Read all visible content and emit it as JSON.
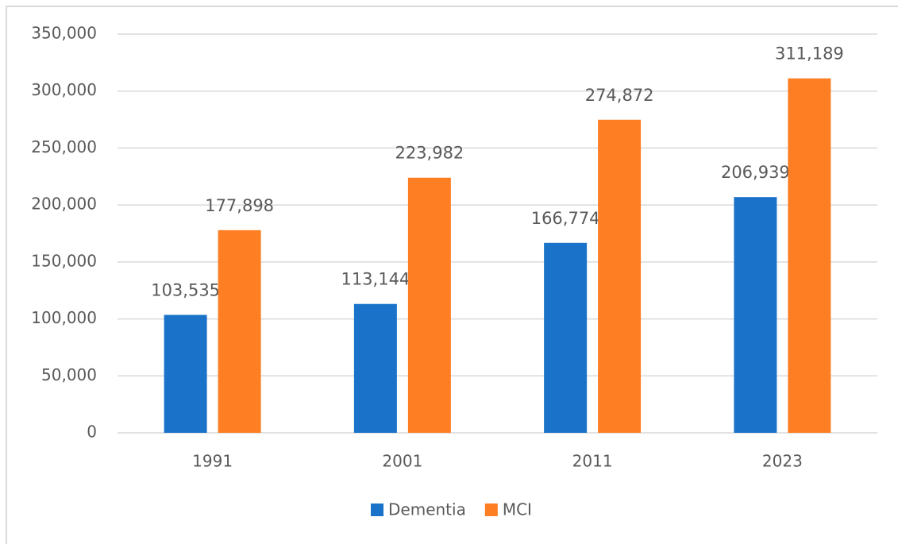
{
  "chart_data": {
    "type": "bar",
    "categories": [
      "1991",
      "2001",
      "2011",
      "2023"
    ],
    "series": [
      {
        "name": "Dementia",
        "color": "#1a73c8",
        "values": [
          103535,
          113144,
          166774,
          206939
        ],
        "value_labels": [
          "103,535",
          "113,144",
          "166,774",
          "206,939"
        ]
      },
      {
        "name": "MCI",
        "color": "#fd7e23",
        "values": [
          177898,
          223982,
          274872,
          311189
        ],
        "value_labels": [
          "177,898",
          "223,982",
          "274,872",
          "311,189"
        ]
      }
    ],
    "ylim": [
      0,
      350000
    ],
    "yticks": [
      {
        "value": 0,
        "label": "0"
      },
      {
        "value": 50000,
        "label": "50,000"
      },
      {
        "value": 100000,
        "label": "100,000"
      },
      {
        "value": 150000,
        "label": "150,000"
      },
      {
        "value": 200000,
        "label": "200,000"
      },
      {
        "value": 250000,
        "label": "250,000"
      },
      {
        "value": 300000,
        "label": "300,000"
      },
      {
        "value": 350000,
        "label": "350,000"
      }
    ],
    "grid": true,
    "legend": "bottom"
  }
}
